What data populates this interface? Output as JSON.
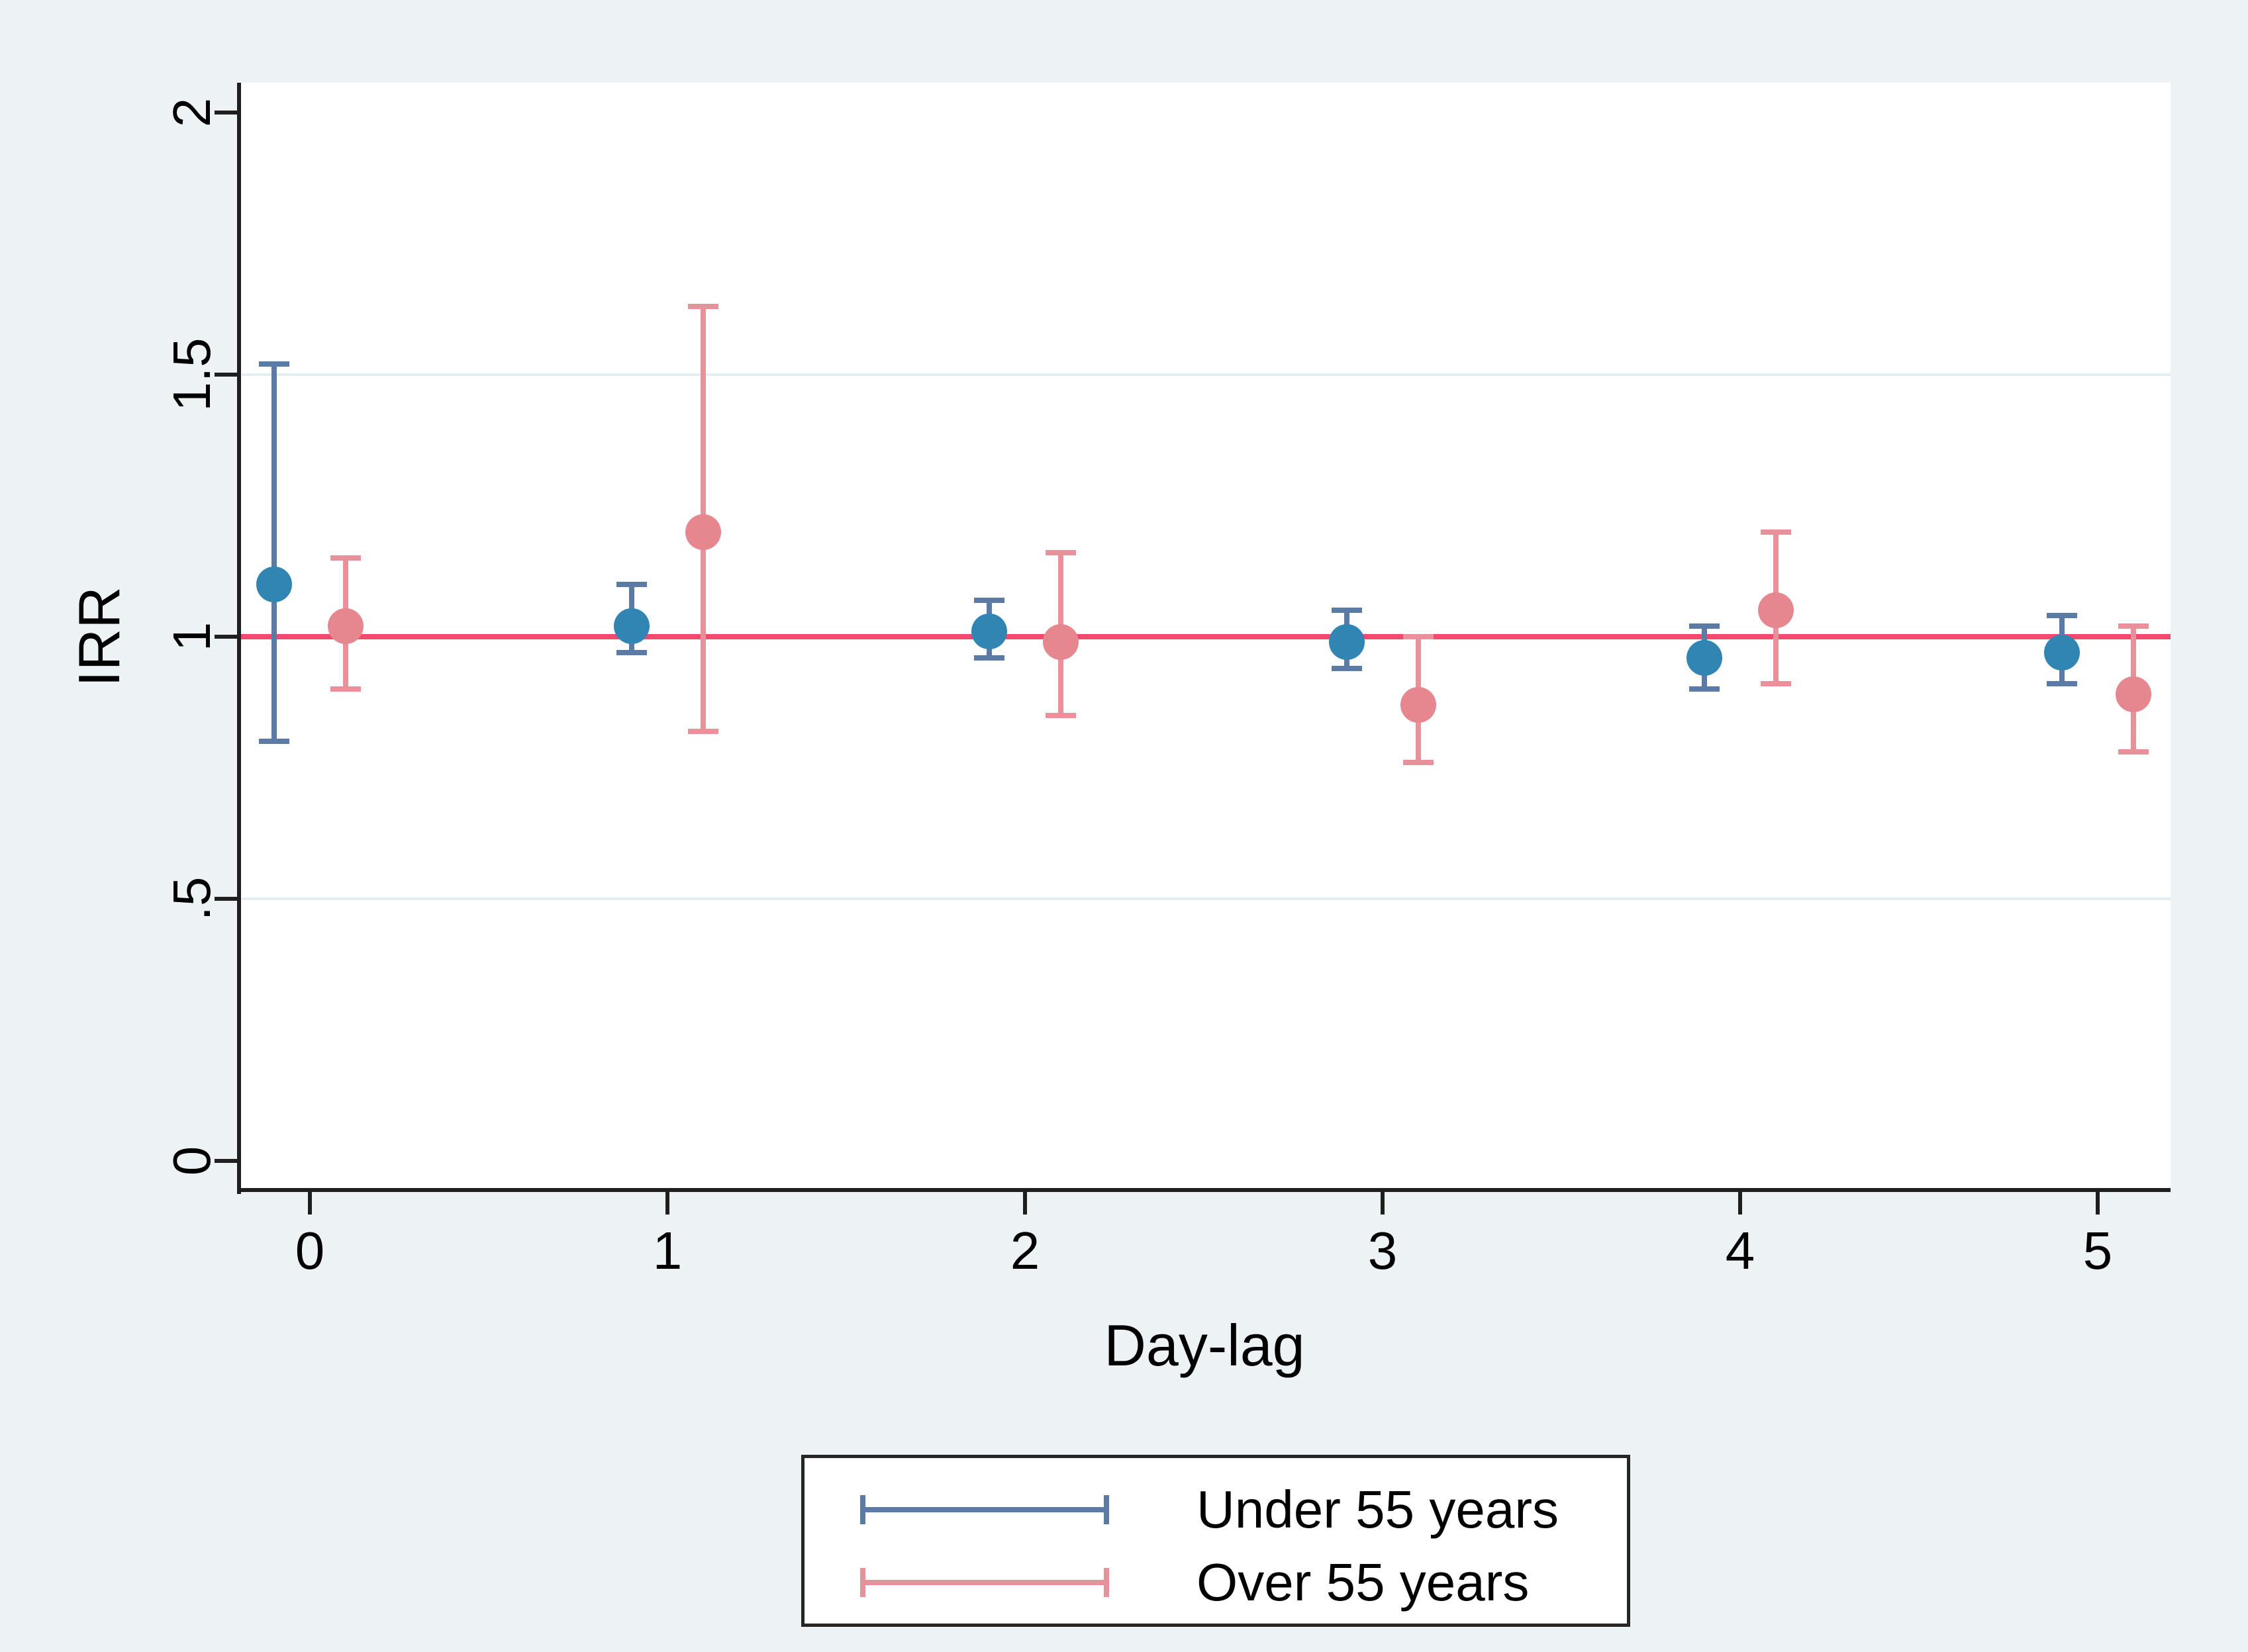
{
  "chart_data": {
    "type": "scatter",
    "title": "",
    "xlabel": "Day-lag",
    "ylabel": "IRR",
    "x_ticks": [
      {
        "v": 0,
        "label": "0"
      },
      {
        "v": 1,
        "label": "1"
      },
      {
        "v": 2,
        "label": "2"
      },
      {
        "v": 3,
        "label": "3"
      },
      {
        "v": 4,
        "label": "4"
      },
      {
        "v": 5,
        "label": "5"
      }
    ],
    "y_ticks": [
      {
        "v": 2,
        "label": "2"
      },
      {
        "v": 1.5,
        "label": "1.5"
      },
      {
        "v": 1,
        "label": "1"
      },
      {
        "v": 0.5,
        "label": ".5"
      },
      {
        "v": 0,
        "label": "0"
      }
    ],
    "ylim": [
      0,
      2
    ],
    "xlim": [
      -0.2,
      5.2
    ],
    "grid_y": [
      1.5,
      0.5
    ],
    "reference_line": {
      "y": 1,
      "color": "#F5486C"
    },
    "legend_position": "bottom-center",
    "series": [
      {
        "name": "Under 55 years",
        "x_offset": -0.1,
        "marker_color": "#3185B2",
        "bar_color": "#5B7BA6",
        "points": [
          {
            "x": 0,
            "irr": 1.1,
            "ci_low": 0.8,
            "ci_high": 1.52
          },
          {
            "x": 1,
            "irr": 1.02,
            "ci_low": 0.97,
            "ci_high": 1.1
          },
          {
            "x": 2,
            "irr": 1.01,
            "ci_low": 0.96,
            "ci_high": 1.07
          },
          {
            "x": 3,
            "irr": 0.99,
            "ci_low": 0.94,
            "ci_high": 1.05
          },
          {
            "x": 4,
            "irr": 0.96,
            "ci_low": 0.9,
            "ci_high": 1.02
          },
          {
            "x": 5,
            "irr": 0.97,
            "ci_low": 0.91,
            "ci_high": 1.04
          }
        ]
      },
      {
        "name": "Over 55 years",
        "x_offset": 0.1,
        "marker_color": "#E6868F",
        "bar_color": "#E8919B",
        "points": [
          {
            "x": 0,
            "irr": 1.02,
            "ci_low": 0.9,
            "ci_high": 1.15
          },
          {
            "x": 1,
            "irr": 1.2,
            "ci_low": 0.82,
            "ci_high": 1.63
          },
          {
            "x": 2,
            "irr": 0.99,
            "ci_low": 0.85,
            "ci_high": 1.16
          },
          {
            "x": 3,
            "irr": 0.87,
            "ci_low": 0.76,
            "ci_high": 1.0
          },
          {
            "x": 4,
            "irr": 1.05,
            "ci_low": 0.91,
            "ci_high": 1.2
          },
          {
            "x": 5,
            "irr": 0.89,
            "ci_low": 0.78,
            "ci_high": 1.02
          }
        ]
      }
    ],
    "colors": {
      "page_background": "#EDF3F5",
      "plot_background": "#FFFFFF",
      "gridline": "#E2EEF2",
      "axis": "#1F1F1F",
      "reference_line": "#F5486C"
    }
  }
}
